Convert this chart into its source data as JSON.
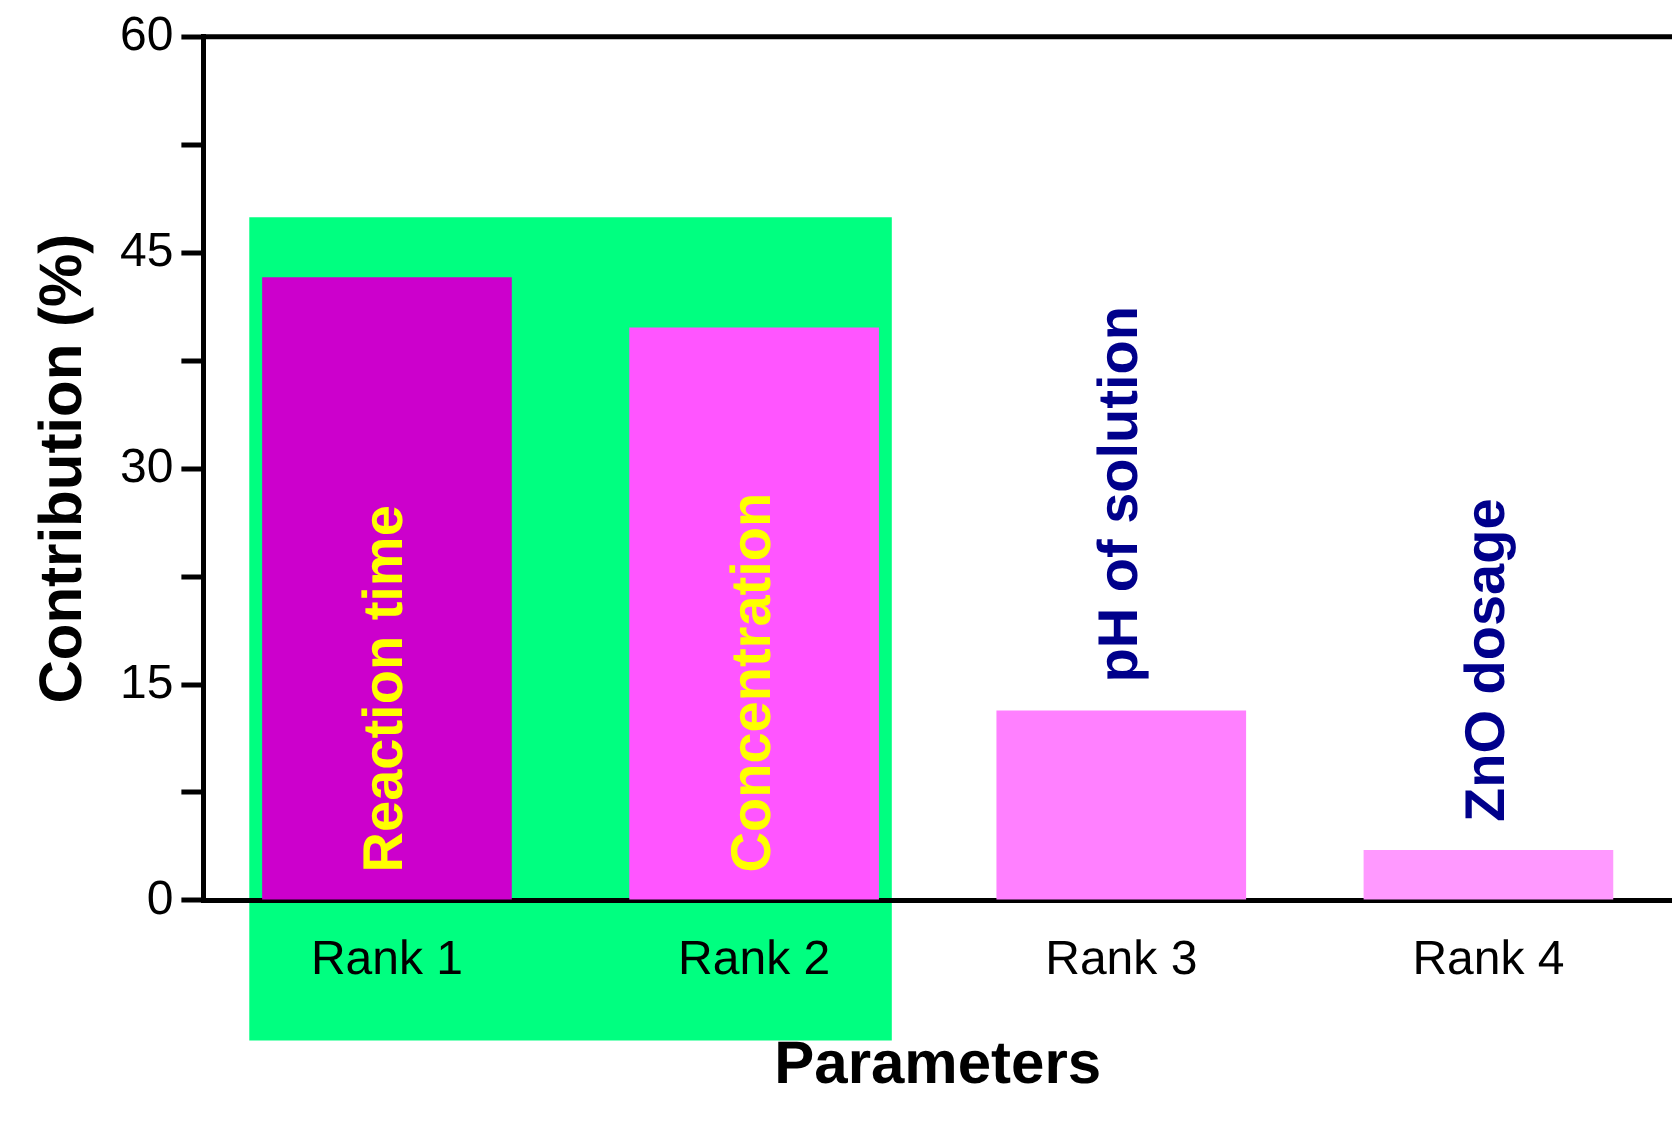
{
  "chart_data": {
    "type": "bar",
    "xlabel": "Parameters",
    "ylabel": "Contribution (%)",
    "categories": [
      "Rank 1",
      "Rank 2",
      "Rank 3",
      "Rank 4"
    ],
    "values": [
      43.3,
      39.8,
      13.2,
      3.5
    ],
    "colors": [
      "#cc00cc",
      "#ff55ff",
      "#ff80ff",
      "#ff99ff"
    ],
    "ylim": [
      0,
      60
    ],
    "yticks": [
      0,
      {
        "value": 7.5,
        "label": null
      },
      15,
      {
        "value": 22.5,
        "label": null
      },
      30,
      {
        "value": 37.5,
        "label": null
      },
      45,
      {
        "value": 52.5,
        "label": null
      },
      60
    ],
    "grid": false,
    "bands": [
      {
        "axis": "x",
        "from": "Rank 1",
        "to": "Rank 2",
        "color": "#00ff80"
      }
    ],
    "annotations": [
      "Reaction time",
      "Concentration",
      "pH of solution",
      "ZnO dosage"
    ]
  }
}
